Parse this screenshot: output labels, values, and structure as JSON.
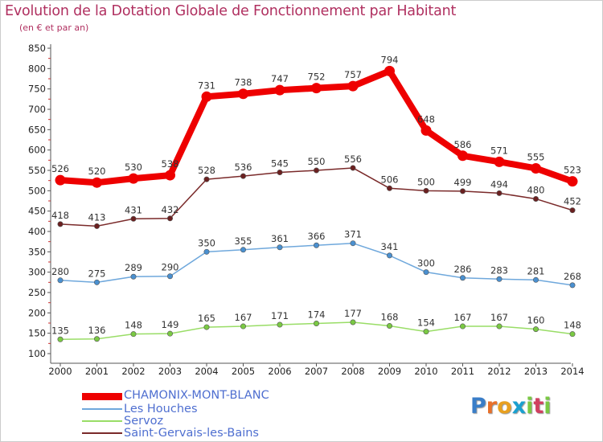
{
  "chart_data": {
    "type": "line",
    "title": "Evolution de la Dotation Globale de Fonctionnement par Habitant",
    "subtitle": "(en € et par an)",
    "xlabel": "",
    "ylabel": "",
    "ylim": [
      100,
      850
    ],
    "yticks": [
      100,
      150,
      200,
      250,
      300,
      350,
      400,
      450,
      500,
      550,
      600,
      650,
      700,
      750,
      800,
      850
    ],
    "categories": [
      "2000",
      "2001",
      "2002",
      "2003",
      "2004",
      "2005",
      "2006",
      "2007",
      "2008",
      "2009",
      "2010",
      "2011",
      "2012",
      "2013",
      "2014"
    ],
    "grid": false,
    "legend_position": "bottom-left",
    "series": [
      {
        "key": "servoz",
        "name": "Servoz",
        "color": "#99dd66",
        "marker": "#7ac943",
        "values": [
          135,
          136,
          148,
          149,
          165,
          167,
          171,
          174,
          177,
          168,
          154,
          167,
          167,
          160,
          148
        ]
      },
      {
        "key": "leshouches",
        "name": "Les Houches",
        "color": "#6fa8dc",
        "marker": "#4a90d0",
        "values": [
          280,
          275,
          289,
          290,
          350,
          355,
          361,
          366,
          371,
          341,
          300,
          286,
          283,
          281,
          268
        ]
      },
      {
        "key": "stgervais",
        "name": "Saint-Gervais-les-Bains",
        "color": "#7a2a2a",
        "marker": "#6b2020",
        "values": [
          418,
          413,
          431,
          432,
          528,
          536,
          545,
          550,
          556,
          506,
          500,
          499,
          494,
          480,
          452
        ]
      },
      {
        "key": "chamonix",
        "name": "CHAMONIX-MONT-BLANC",
        "color": "#ee0000",
        "marker": "#ee0000",
        "values": [
          526,
          520,
          530,
          538,
          731,
          738,
          747,
          752,
          757,
          794,
          648,
          586,
          571,
          555,
          523
        ]
      }
    ]
  },
  "legend": {
    "chamonix": "CHAMONIX-MONT-BLANC",
    "leshouches": "Les Houches",
    "servoz": "Servoz",
    "stgervais": "Saint-Gervais-les-Bains"
  },
  "logo": {
    "letters": [
      "P",
      "r",
      "o",
      "x",
      "i",
      "t",
      "i"
    ],
    "colors": [
      "#3a7ec8",
      "#e8702a",
      "#e8a020",
      "#1aa0d0",
      "#7ac943",
      "#d04060",
      "#7ac943"
    ]
  }
}
